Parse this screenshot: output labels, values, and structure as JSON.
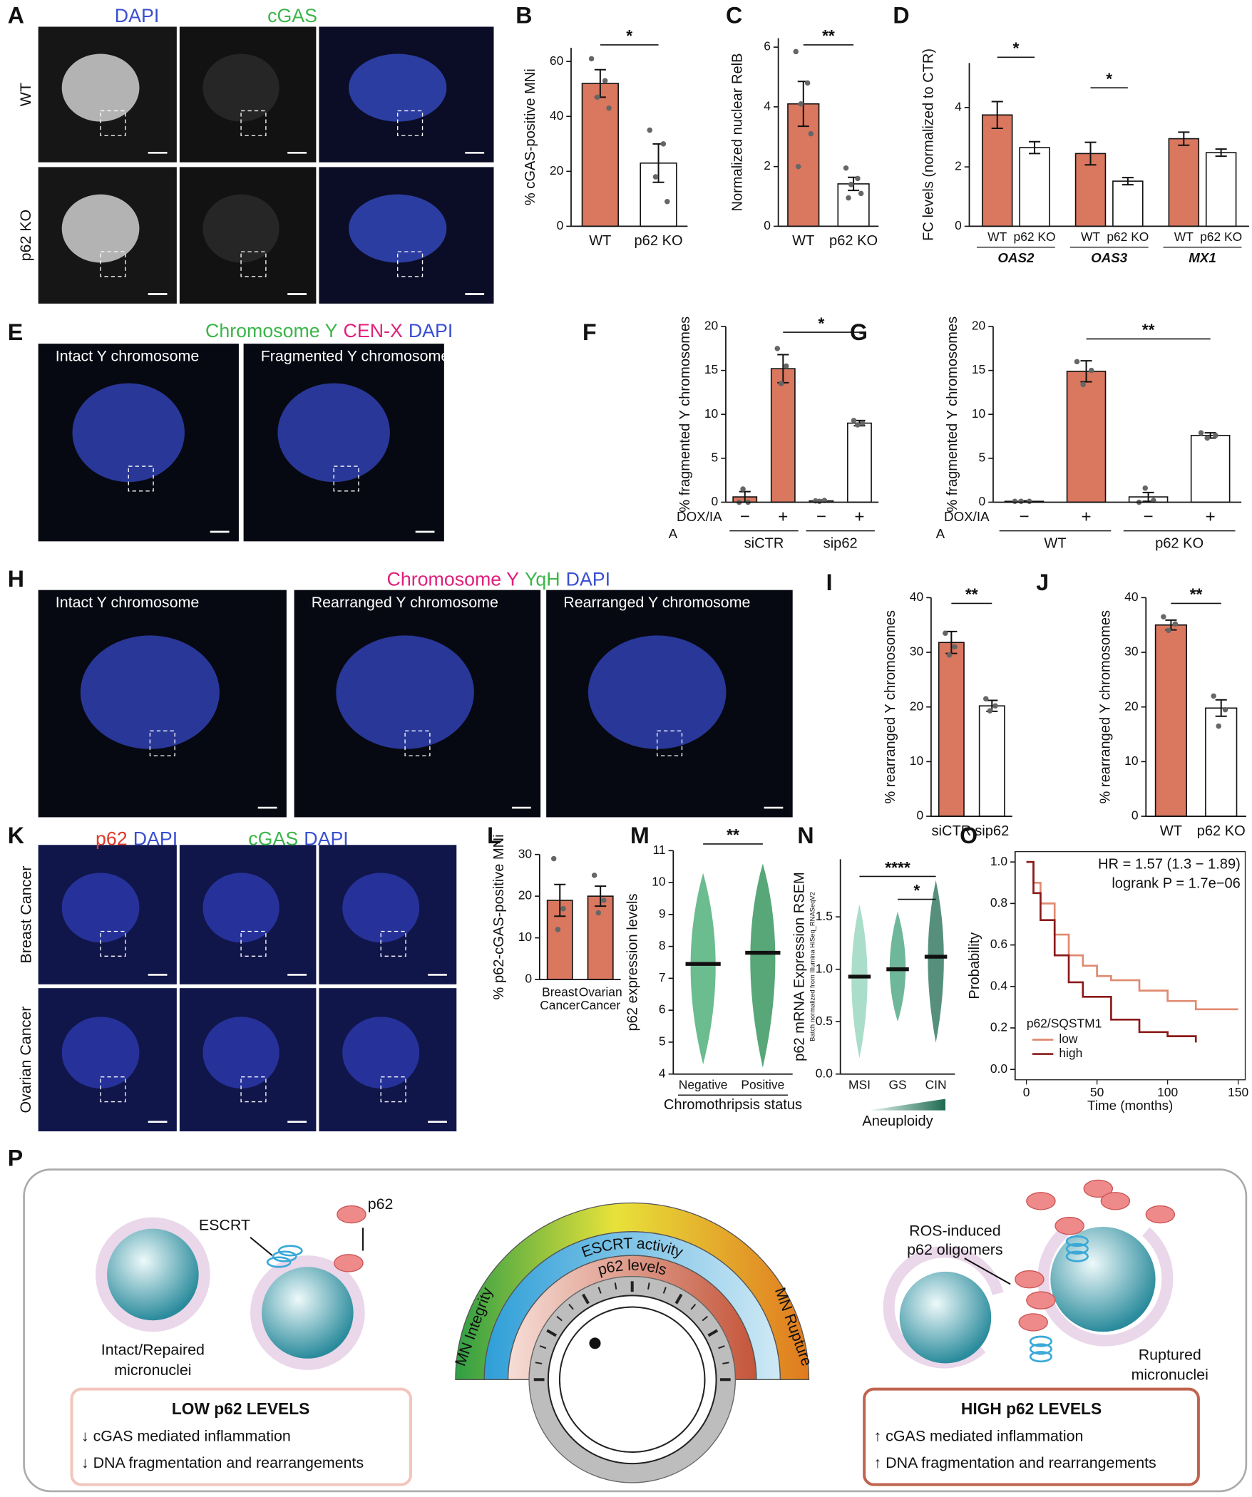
{
  "chart_data": [
    {
      "type": "bar",
      "panel": "B",
      "ylabel": "% cGAS-positive MNi",
      "categories": [
        "WT",
        "p62 KO"
      ],
      "values": [
        52,
        23
      ],
      "errors": [
        5,
        7
      ],
      "points": [
        [
          61,
          53,
          47,
          43
        ],
        [
          35,
          30,
          18,
          9
        ]
      ],
      "colors": [
        "#d9775f",
        "#ffffff"
      ],
      "ylim": [
        0,
        65
      ],
      "yticks": [
        0,
        20,
        40,
        60
      ],
      "significance": [
        "*"
      ]
    },
    {
      "type": "bar",
      "panel": "C",
      "ylabel": "Normalized nuclear RelB",
      "categories": [
        "WT",
        "p62 KO"
      ],
      "values": [
        4.1,
        1.42
      ],
      "errors": [
        0.75,
        0.22
      ],
      "points": [
        [
          5.85,
          4.8,
          4.1,
          3.1,
          2.0
        ],
        [
          1.95,
          1.6,
          1.4,
          1.1,
          0.95
        ]
      ],
      "colors": [
        "#d9775f",
        "#ffffff"
      ],
      "ylim": [
        0,
        6.3
      ],
      "yticks": [
        0,
        2,
        4,
        6
      ],
      "significance": [
        "**"
      ]
    },
    {
      "type": "grouped_bar",
      "panel": "D",
      "ylabel": "FC levels (normalized to CTR)",
      "categories": [
        "OAS2",
        "OAS3",
        "MX1"
      ],
      "series": [
        {
          "name": "WT",
          "color": "#d9775f",
          "values": [
            3.75,
            2.45,
            2.95
          ],
          "errors": [
            0.45,
            0.38,
            0.22
          ]
        },
        {
          "name": "p62 KO",
          "color": "#ffffff",
          "values": [
            2.65,
            1.52,
            2.48
          ],
          "errors": [
            0.2,
            0.12,
            0.12
          ]
        }
      ],
      "ylim": [
        0,
        5.5
      ],
      "yticks": [
        0,
        2,
        4
      ],
      "significance": [
        "*",
        "*"
      ]
    },
    {
      "type": "bar",
      "panel": "F",
      "ylabel": "% fragmented Y chromosomes",
      "categories": [
        "−",
        "+",
        "−",
        "+"
      ],
      "groups": [
        "siCTR",
        "sip62"
      ],
      "row_label": "DOX/IA",
      "row_label_wrap": "A",
      "values": [
        0.6,
        15.2,
        0.15,
        9.0
      ],
      "errors": [
        0.6,
        1.6,
        0.1,
        0.3
      ],
      "points": [
        [
          0,
          0,
          1.5
        ],
        [
          17.5,
          15.5,
          13.5
        ],
        [
          0.15,
          0.2,
          0.1
        ],
        [
          9.3,
          9.0,
          8.8
        ]
      ],
      "colors": [
        "#d9775f",
        "#d9775f",
        "#ffffff",
        "#ffffff"
      ],
      "ylim": [
        0,
        20
      ],
      "yticks": [
        0,
        5,
        10,
        15,
        20
      ],
      "significance": [
        "*"
      ]
    },
    {
      "type": "bar",
      "panel": "G",
      "ylabel": "% fragmented Y chromosomes",
      "categories": [
        "−",
        "+",
        "−",
        "+"
      ],
      "groups": [
        "WT",
        "p62 KO"
      ],
      "row_label": "DOX/IA",
      "row_label_wrap": "A",
      "values": [
        0.1,
        14.9,
        0.6,
        7.6
      ],
      "errors": [
        0.05,
        1.2,
        0.5,
        0.3
      ],
      "points": [
        [
          0.1,
          0.1,
          0.1
        ],
        [
          16,
          15,
          13.4
        ],
        [
          0,
          0.2,
          1.6
        ],
        [
          7.9,
          7.6,
          7.3
        ]
      ],
      "colors": [
        "#d9775f",
        "#d9775f",
        "#ffffff",
        "#ffffff"
      ],
      "ylim": [
        0,
        20
      ],
      "yticks": [
        0,
        5,
        10,
        15,
        20
      ],
      "significance": [
        "**"
      ]
    },
    {
      "type": "bar",
      "panel": "I",
      "ylabel": "% rearranged Y chromosomes",
      "categories": [
        "siCTR",
        "sip62"
      ],
      "values": [
        31.8,
        20.2
      ],
      "errors": [
        2,
        1
      ],
      "points": [
        [
          33.5,
          31,
          29.5
        ],
        [
          21.5,
          20.2,
          19.3
        ]
      ],
      "colors": [
        "#d9775f",
        "#ffffff"
      ],
      "ylim": [
        0,
        40
      ],
      "yticks": [
        0,
        10,
        20,
        30,
        40
      ],
      "significance": [
        "**"
      ]
    },
    {
      "type": "bar",
      "panel": "J",
      "ylabel": "% rearranged Y chromosomes",
      "categories": [
        "WT",
        "p62 KO"
      ],
      "values": [
        35,
        19.8
      ],
      "errors": [
        0.9,
        1.5
      ],
      "points": [
        [
          36.5,
          35.2,
          34
        ],
        [
          22,
          19.5,
          16.5
        ]
      ],
      "colors": [
        "#d9775f",
        "#ffffff"
      ],
      "ylim": [
        0,
        40
      ],
      "yticks": [
        0,
        10,
        20,
        30,
        40
      ],
      "significance": [
        "**"
      ]
    },
    {
      "type": "bar",
      "panel": "L",
      "ylabel": "% p62-cGAS-positive MNi",
      "categories": [
        [
          "Breast",
          "Cancer"
        ],
        [
          "Ovarian",
          "Cancer"
        ]
      ],
      "values": [
        19,
        20
      ],
      "errors": [
        3.8,
        2.4
      ],
      "points": [
        [
          29,
          17,
          12
        ],
        [
          25,
          19,
          16
        ]
      ],
      "colors": [
        "#d9775f",
        "#d9775f"
      ],
      "ylim": [
        0,
        30
      ],
      "yticks": [
        0,
        10,
        20,
        30
      ],
      "significance": []
    },
    {
      "type": "strip",
      "panel": "M",
      "ylabel": "p62 expression levels",
      "xlabel": "Chromothripsis status",
      "categories": [
        "Negative",
        "Positive"
      ],
      "values": [
        7.45,
        7.8
      ],
      "ranges": [
        [
          4.3,
          10.3
        ],
        [
          4.2,
          10.6
        ]
      ],
      "colors": [
        "#3aa66a",
        "#1f8a4c"
      ],
      "ylim": [
        4,
        11
      ],
      "yticks": [
        4,
        5,
        6,
        7,
        8,
        9,
        10,
        11
      ],
      "significance": [
        "**"
      ]
    },
    {
      "type": "strip",
      "panel": "N",
      "ylabel": "p62 mRNA Expression RSEM",
      "ylabel_note": "Batch normalized from Illumina HiSeq_RNASeqV2",
      "xlabel": "Aneuploidy",
      "categories": [
        "MSI",
        "GS",
        "CIN"
      ],
      "values": [
        0.93,
        1.0,
        1.12
      ],
      "ranges": [
        [
          0.15,
          1.62
        ],
        [
          0.5,
          1.55
        ],
        [
          0.3,
          1.85
        ]
      ],
      "colors": [
        "#8fd3b8",
        "#3f9f7a",
        "#1e6b52"
      ],
      "ylim": [
        0,
        2.05
      ],
      "yticks": [
        {
          "value": 0,
          "label": "0.0"
        },
        0.5,
        {
          "value": 1,
          "label": "1.0"
        },
        1.5
      ],
      "significance": [
        "****",
        "*"
      ]
    },
    {
      "type": "line",
      "panel": "O",
      "ylabel": "Probability",
      "xlabel": "Time (months)",
      "xlim": [
        -8,
        155
      ],
      "xticks": [
        0,
        50,
        100,
        150
      ],
      "ylim": [
        -0.05,
        1.05
      ],
      "yticks": [
        {
          "value": 0,
          "label": "0.0"
        },
        0.2,
        0.4,
        0.6,
        0.8,
        {
          "value": 1,
          "label": "1.0"
        }
      ],
      "legend_title": "p62/SQSTM1",
      "annotations": [
        "HR = 1.57 (1.3 − 1.89)",
        "logrank P = 1.7e−06"
      ],
      "series": [
        {
          "name": "low",
          "color": "#e08a70",
          "x": [
            0,
            5,
            10,
            20,
            30,
            40,
            50,
            60,
            80,
            100,
            120,
            150
          ],
          "values": [
            1.0,
            0.9,
            0.8,
            0.65,
            0.55,
            0.5,
            0.45,
            0.43,
            0.38,
            0.33,
            0.29,
            0.29
          ]
        },
        {
          "name": "high",
          "color": "#8b1a1a",
          "x": [
            0,
            5,
            10,
            20,
            30,
            40,
            60,
            80,
            100,
            120
          ],
          "values": [
            1.0,
            0.85,
            0.72,
            0.55,
            0.42,
            0.35,
            0.24,
            0.18,
            0.16,
            0.13
          ]
        }
      ]
    }
  ],
  "images": [
    {
      "panel": "A",
      "headers": [
        [
          {
            "text": "DAPI",
            "color": "#3a4fd0"
          }
        ],
        [
          {
            "text": "cGAS",
            "color": "#3cb54a"
          }
        ]
      ],
      "rows": [
        "WT",
        "p62 KO"
      ]
    },
    {
      "panel": "E",
      "headers": [
        [
          {
            "text": "Chromosome Y",
            "color": "#3cb54a"
          },
          {
            "text": "CEN-X",
            "color": "#e0207a"
          },
          {
            "text": "DAPI",
            "color": "#3a4fd0"
          }
        ]
      ],
      "captions": [
        "Intact Y chromosome",
        "Fragmented Y chromosome"
      ]
    },
    {
      "panel": "H",
      "headers": [
        [
          {
            "text": "Chromosome Y",
            "color": "#e0207a"
          },
          {
            "text": "YqH",
            "color": "#3cb54a"
          },
          {
            "text": "DAPI",
            "color": "#3a4fd0"
          }
        ]
      ],
      "captions": [
        "Intact Y chromosome",
        "Rearranged Y chromosome",
        "Rearranged Y chromosome"
      ]
    },
    {
      "panel": "K",
      "headers": [
        [
          {
            "text": "p62",
            "color": "#e03a2a"
          },
          {
            "text": "DAPI",
            "color": "#3a4fd0"
          }
        ],
        [
          {
            "text": "cGAS",
            "color": "#3cb54a"
          },
          {
            "text": "DAPI",
            "color": "#3a4fd0"
          }
        ]
      ],
      "rows": [
        "Breast Cancer",
        "Ovarian Cancer"
      ]
    }
  ],
  "diagram": {
    "panel": "P",
    "left": {
      "p62_label": "p62",
      "escrt_label": "ESCRT",
      "caption": [
        "Intact/Repaired",
        "micronuclei"
      ],
      "box_title": "LOW p62 LEVELS",
      "box_items": [
        "↓ cGAS mediated inflammation",
        "↓ DNA fragmentation and rearrangements"
      ]
    },
    "center": {
      "outer_arc": "MN Integrity",
      "outer_arc_end": "MN Rupture",
      "middle_arc": "ESCRT activity",
      "inner_arc": "p62 levels"
    },
    "right": {
      "label": [
        "ROS-induced",
        "p62 oligomers"
      ],
      "caption": [
        "Ruptured",
        "micronuclei"
      ],
      "box_title": "HIGH p62 LEVELS",
      "box_items": [
        "↑ cGAS mediated inflammation",
        "↑ DNA fragmentation and rearrangements"
      ]
    }
  }
}
